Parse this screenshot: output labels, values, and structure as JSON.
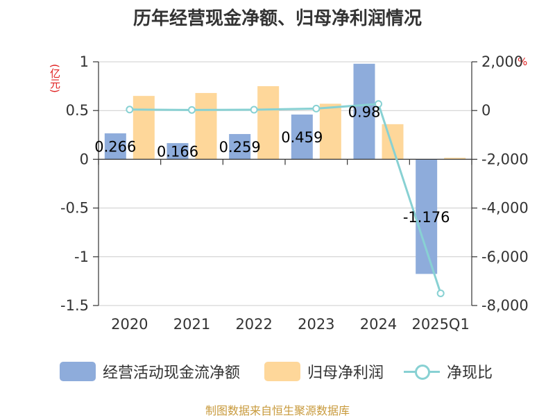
{
  "title": "历年经营现金净额、归母净利润情况",
  "source": "制图数据来自恒生聚源数据库",
  "left_unit": "(亿元)",
  "right_unit": "%",
  "legend": [
    {
      "label": "经营活动现金流净额",
      "color": "#8eacdb"
    },
    {
      "label": "归母净利润",
      "color": "#fed79a"
    },
    {
      "label": "净现比",
      "color": "#88d1d3"
    }
  ],
  "chart_data": {
    "type": "bar",
    "title": "历年经营现金净额、归母净利润情况",
    "categories": [
      "2020",
      "2021",
      "2022",
      "2023",
      "2024",
      "2025Q1"
    ],
    "series": [
      {
        "name": "经营活动现金流净额",
        "type": "bar",
        "axis": "left",
        "color": "#8eacdb",
        "values": [
          0.266,
          0.166,
          0.259,
          0.459,
          0.98,
          -1.176
        ],
        "labels": [
          "0.266",
          "0.166",
          "0.259",
          "0.459",
          "0.98",
          "-1.176"
        ]
      },
      {
        "name": "归母净利润",
        "type": "bar",
        "axis": "left",
        "color": "#fed79a",
        "values": [
          0.65,
          0.68,
          0.75,
          0.57,
          0.36,
          0.015
        ]
      },
      {
        "name": "净现比",
        "type": "line",
        "axis": "right",
        "color": "#88d1d3",
        "values": [
          40,
          25,
          35,
          80,
          270,
          -7500
        ]
      }
    ],
    "y_left": {
      "min": -1.5,
      "max": 1,
      "ticks": [
        1,
        0.5,
        0,
        -0.5,
        -1,
        -1.5
      ],
      "tick_labels": [
        "1",
        "0.5",
        "0",
        "-0.5",
        "-1",
        "-1.5"
      ],
      "label": "(亿元)"
    },
    "y_right": {
      "min": -8000,
      "max": 2000,
      "ticks": [
        2000,
        0,
        -2000,
        -4000,
        -6000,
        -8000
      ],
      "tick_labels": [
        "2,000",
        "0",
        "-2,000",
        "-4,000",
        "-6,000",
        "-8,000"
      ],
      "label": "%"
    },
    "grid": true,
    "legend_position": "bottom"
  }
}
